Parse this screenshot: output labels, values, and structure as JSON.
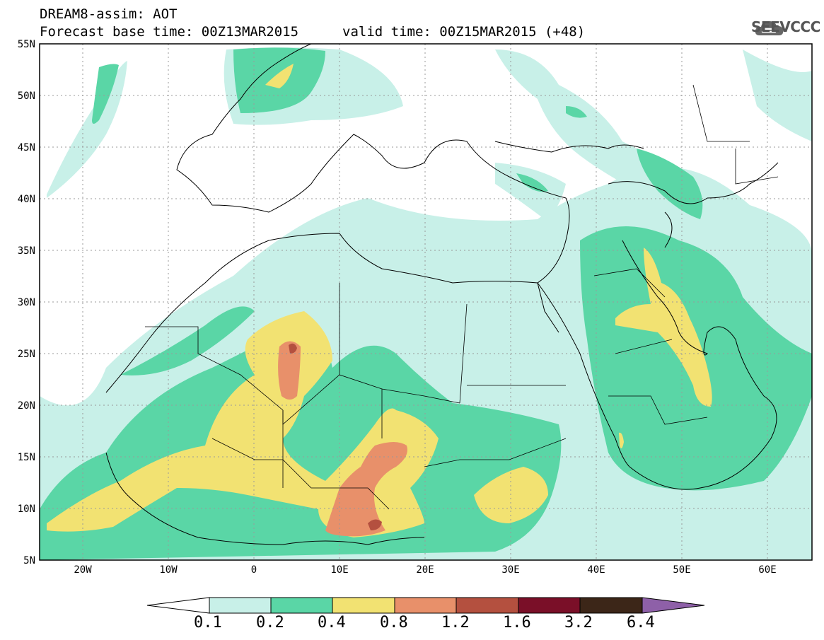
{
  "header": {
    "line1": "DREAM8-assim: AOT",
    "line2_base": "Forecast base time: 00Z13MAR2015",
    "line2_valid": "valid time: 00Z15MAR2015 (+48)",
    "logo_text": "SEEVCCC",
    "logo_icon": "cloud-icon"
  },
  "map": {
    "lat_range": [
      5,
      55
    ],
    "lon_range": [
      -25,
      65
    ],
    "lat_labels": [
      "55N",
      "50N",
      "45N",
      "40N",
      "35N",
      "30N",
      "25N",
      "20N",
      "15N",
      "10N",
      "5N"
    ],
    "lon_labels": [
      "20W",
      "10W",
      "0",
      "10E",
      "20E",
      "30E",
      "40E",
      "50E",
      "60E"
    ]
  },
  "colorbar": {
    "labels": [
      "0.1",
      "0.2",
      "0.4",
      "0.8",
      "1.2",
      "1.6",
      "3.2",
      "6.4"
    ],
    "colors": [
      "#c8f0e8",
      "#5ad6a6",
      "#f2e272",
      "#e8906a",
      "#b4503f",
      "#7a0f28",
      "#3c2618",
      "#8e60a8"
    ]
  }
}
